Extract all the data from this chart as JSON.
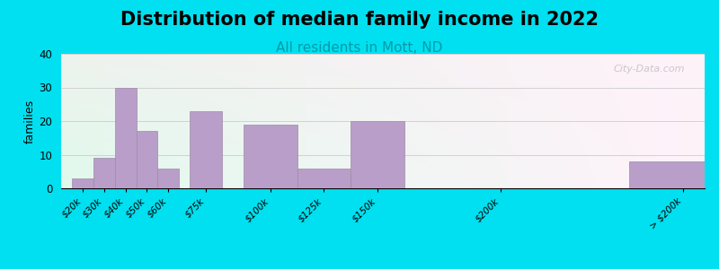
{
  "title": "Distribution of median family income in 2022",
  "subtitle": "All residents in Mott, ND",
  "categories": [
    "$20k",
    "$30k",
    "$40k",
    "$50k",
    "$60k",
    "$75k",
    "$100k",
    "$125k",
    "$150k",
    "$200k",
    "> $200k"
  ],
  "x_positions": [
    0,
    1,
    2,
    3,
    4,
    5.5,
    8,
    10.5,
    13,
    18,
    26
  ],
  "bar_widths": [
    1,
    1,
    1,
    1,
    1,
    1.5,
    2.5,
    2.5,
    2.5,
    4,
    5
  ],
  "values": [
    3,
    9,
    30,
    17,
    6,
    23,
    19,
    6,
    20,
    0,
    8
  ],
  "bar_color": "#b89ec8",
  "bar_edge_color": "#a08aaa",
  "ylabel": "families",
  "ylim": [
    0,
    40
  ],
  "yticks": [
    0,
    10,
    20,
    30,
    40
  ],
  "background_outer": "#00e0f0",
  "title_fontsize": 15,
  "subtitle_fontsize": 11,
  "subtitle_color": "#009aaa",
  "watermark": "City-Data.com"
}
